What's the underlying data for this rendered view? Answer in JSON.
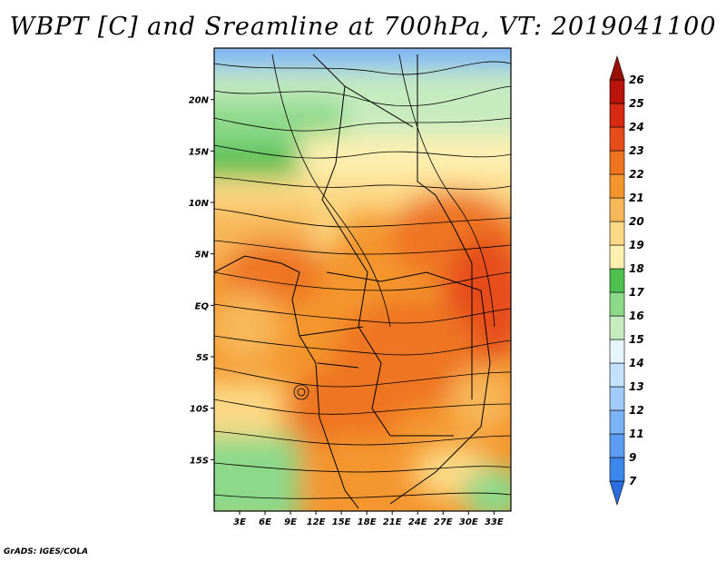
{
  "title": "WBPT [C] and Sreamline at 700hPa, VT: 2019041100",
  "footer": "GrADS: IGES/COLA",
  "map": {
    "lon_range": [
      0,
      35
    ],
    "lat_range": [
      -20,
      25
    ],
    "lat_ticks": [
      {
        "value": 20,
        "label": "20N"
      },
      {
        "value": 15,
        "label": "15N"
      },
      {
        "value": 10,
        "label": "10N"
      },
      {
        "value": 5,
        "label": "5N"
      },
      {
        "value": 0,
        "label": "EQ"
      },
      {
        "value": -5,
        "label": "5S"
      },
      {
        "value": -10,
        "label": "10S"
      },
      {
        "value": -15,
        "label": "15S"
      }
    ],
    "lon_ticks": [
      {
        "value": 3,
        "label": "3E"
      },
      {
        "value": 6,
        "label": "6E"
      },
      {
        "value": 9,
        "label": "9E"
      },
      {
        "value": 12,
        "label": "12E"
      },
      {
        "value": 15,
        "label": "15E"
      },
      {
        "value": 18,
        "label": "18E"
      },
      {
        "value": 21,
        "label": "21E"
      },
      {
        "value": 24,
        "label": "24E"
      },
      {
        "value": 27,
        "label": "27E"
      },
      {
        "value": 30,
        "label": "30E"
      },
      {
        "value": 33,
        "label": "33E"
      }
    ]
  },
  "colorbar": {
    "levels": [
      "7",
      "9",
      "11",
      "12",
      "13",
      "14",
      "15",
      "16",
      "17",
      "18",
      "19",
      "20",
      "21",
      "22",
      "23",
      "24",
      "25",
      "26"
    ],
    "colors": [
      "#2a6fe0",
      "#3c86ec",
      "#5a9df2",
      "#7ab4f6",
      "#a0cbf8",
      "#c4e0fa",
      "#e6f4fb",
      "#c6ebbf",
      "#8cd98a",
      "#4fbf4f",
      "#fff0b0",
      "#fcd986",
      "#f8b758",
      "#f4962e",
      "#ee7420",
      "#e64c1c",
      "#d62a14",
      "#b8140c",
      "#961008"
    ]
  }
}
